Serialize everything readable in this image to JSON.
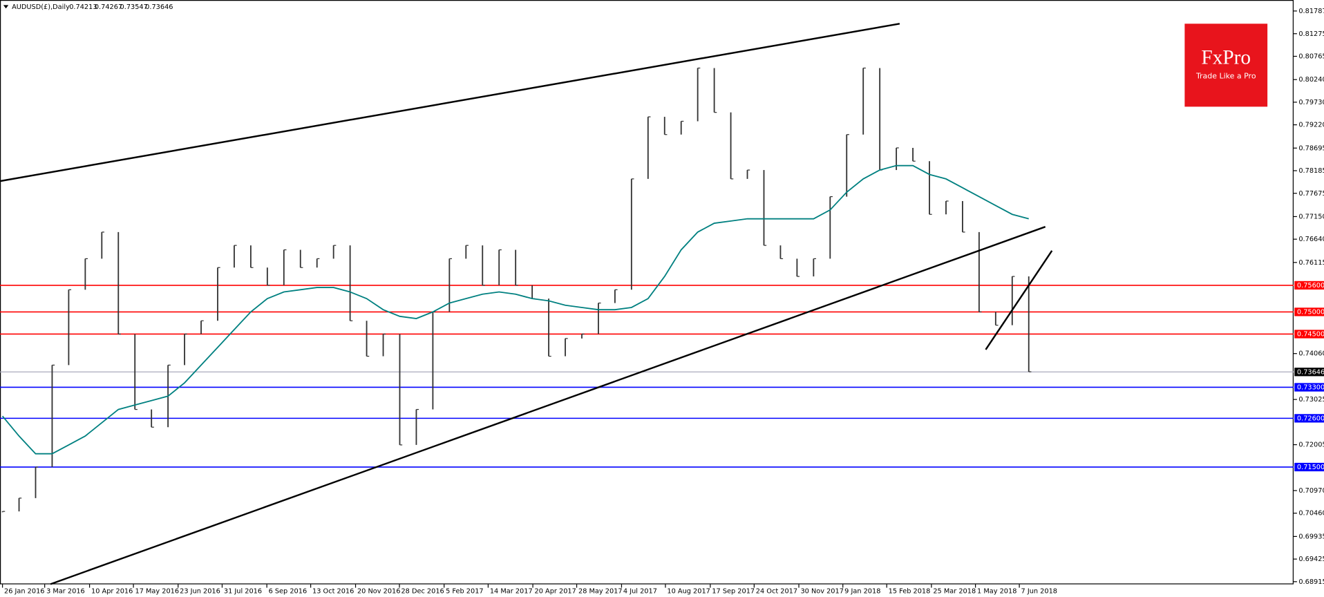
{
  "chart_data": {
    "type": "ohlc",
    "title": "AUDUSD(£),Daily",
    "last_bar": [
      0.74213,
      0.74267,
      0.73547,
      0.73646
    ],
    "brand": "FxPro",
    "tagline": "Trade Like a Pro",
    "xlim": [
      -0.15,
      78
    ],
    "ylim": [
      0.68856,
      0.82035
    ],
    "xticks": [
      {
        "value": 0,
        "label": "26 Jan 2016"
      },
      {
        "value": 2.55,
        "label": "3 Mar 2016"
      },
      {
        "value": 5.26,
        "label": "10 Apr 2016"
      },
      {
        "value": 7.91,
        "label": "17 May 2016"
      },
      {
        "value": 10.61,
        "label": "23 Jun 2016"
      },
      {
        "value": 13.27,
        "label": "31 Jul 2016"
      },
      {
        "value": 15.97,
        "label": "6 Sep 2016"
      },
      {
        "value": 18.62,
        "label": "13 Oct 2016"
      },
      {
        "value": 21.33,
        "label": "20 Nov 2016"
      },
      {
        "value": 23.98,
        "label": "28 Dec 2016"
      },
      {
        "value": 26.68,
        "label": "5 Feb 2017"
      },
      {
        "value": 29.34,
        "label": "14 Mar 2017"
      },
      {
        "value": 32.04,
        "label": "20 Apr 2017"
      },
      {
        "value": 34.69,
        "label": "28 May 2017"
      },
      {
        "value": 37.4,
        "label": "4 Jul 2017"
      },
      {
        "value": 40.05,
        "label": "10 Aug 2017"
      },
      {
        "value": 42.76,
        "label": "17 Sep 2017"
      },
      {
        "value": 45.41,
        "label": "24 Oct 2017"
      },
      {
        "value": 48.11,
        "label": "30 Nov 2017"
      },
      {
        "value": 50.77,
        "label": "9 Jan 2018"
      },
      {
        "value": 53.42,
        "label": "15 Feb 2018"
      },
      {
        "value": 56.12,
        "label": "25 Mar 2018"
      },
      {
        "value": 58.78,
        "label": "1 May 2018"
      },
      {
        "value": 61.43,
        "label": "7 Jun 2018"
      }
    ],
    "yticks": [
      0.81787,
      0.81275,
      0.80765,
      {
        "value": 0.8024,
        "label": "0.80240"
      },
      {
        "value": 0.7973,
        "label": "0.79730"
      },
      {
        "value": 0.7922,
        "label": "0.79220"
      },
      0.78695,
      0.78185,
      0.77675,
      {
        "value": 0.7715,
        "label": "0.77150"
      },
      {
        "value": 0.7664,
        "label": "0.76640"
      },
      0.76115,
      {
        "value": 0.7406,
        "label": "0.74060"
      },
      0.73025,
      0.72005,
      {
        "value": 0.7097,
        "label": "0.70970"
      },
      {
        "value": 0.7046,
        "label": "0.70460"
      },
      0.69935,
      0.69425,
      0.68915
    ],
    "levels": [
      {
        "value": 0.756,
        "label": "0.75600",
        "color": "#ff0000"
      },
      {
        "value": 0.75,
        "label": "0.75000",
        "color": "#ff0000"
      },
      {
        "value": 0.745,
        "label": "0.74500",
        "color": "#ff0000"
      },
      {
        "value": 0.733,
        "label": "0.73300",
        "color": "#0000ff"
      },
      {
        "value": 0.726,
        "label": "0.72600",
        "color": "#0000ff"
      },
      {
        "value": 0.715,
        "label": "0.71500",
        "color": "#0000ff"
      }
    ],
    "last_price": 0.73646,
    "series": [
      {
        "color": "#333333",
        "values": [
          0.705,
          0.708,
          0.715,
          0.738,
          0.755,
          0.762,
          0.768,
          0.745,
          0.728,
          0.724,
          0.738,
          0.745,
          0.748,
          0.76,
          0.765,
          0.76,
          0.756,
          0.764,
          0.76,
          0.762,
          0.765,
          0.748,
          0.74,
          0.745,
          0.72,
          0.728,
          0.75,
          0.762,
          0.765,
          0.756,
          0.764,
          0.756,
          0.753,
          0.74,
          0.744,
          0.745,
          0.752,
          0.755,
          0.78,
          0.794,
          0.79,
          0.793,
          0.805,
          0.795,
          0.78,
          0.782,
          0.765,
          0.762,
          0.758,
          0.762,
          0.776,
          0.79,
          0.805,
          0.782,
          0.787,
          0.784,
          0.772,
          0.775,
          0.768,
          0.75,
          0.747,
          0.758,
          0.7365
        ]
      },
      {
        "color": "#008080",
        "values": [
          0.7265,
          0.722,
          0.718,
          0.718,
          0.72,
          0.722,
          0.725,
          0.728,
          0.729,
          0.73,
          0.731,
          0.734,
          0.738,
          0.742,
          0.746,
          0.75,
          0.753,
          0.7545,
          0.755,
          0.7555,
          0.7555,
          0.7545,
          0.753,
          0.7505,
          0.749,
          0.7485,
          0.75,
          0.752,
          0.753,
          0.754,
          0.7545,
          0.754,
          0.753,
          0.7525,
          0.7515,
          0.751,
          0.7505,
          0.7505,
          0.751,
          0.753,
          0.758,
          0.764,
          0.768,
          0.77,
          0.7705,
          0.771,
          0.771,
          0.771,
          0.771,
          0.771,
          0.773,
          0.777,
          0.78,
          0.782,
          0.783,
          0.783,
          0.781,
          0.78,
          0.778,
          0.776,
          0.774,
          0.772,
          0.771
        ]
      }
    ],
    "trendlines": [
      {
        "x": [
          -0.15,
          54.2
        ],
        "values": [
          0.7795,
          0.815
        ]
      },
      {
        "x": [
          2.9,
          63.0
        ],
        "values": [
          0.6886,
          0.7692
        ]
      },
      {
        "x": [
          59.4,
          63.4
        ],
        "values": [
          0.7415,
          0.7638
        ]
      }
    ]
  }
}
